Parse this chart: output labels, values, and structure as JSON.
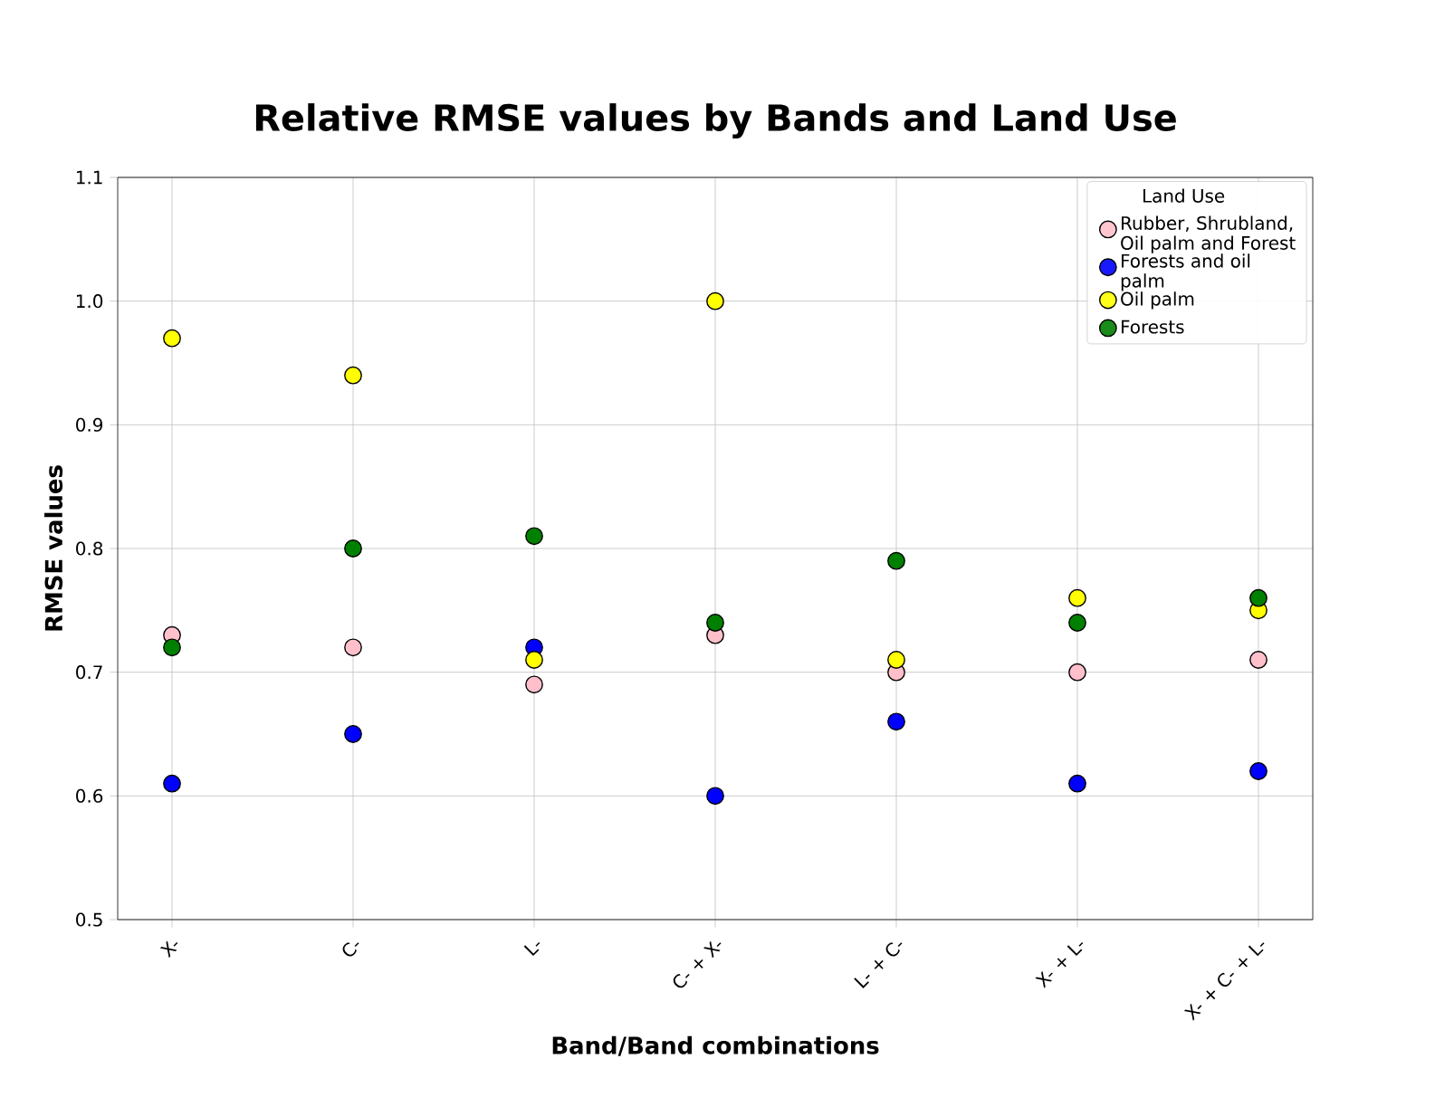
{
  "chart_data": {
    "type": "scatter",
    "title": "Relative RMSE values by Bands and Land Use",
    "xlabel": "Band/Band combinations",
    "ylabel": "RMSE values",
    "legend_title": "Land Use",
    "categories": [
      "X-",
      "C-",
      "L-",
      "C- + X-",
      "L- + C-",
      "X- + L-",
      "X- + C- + L-"
    ],
    "series": [
      {
        "name": "Rubber, Shrubland, Oil palm and Forest",
        "color": "#ffc0cb",
        "values": [
          0.73,
          0.72,
          0.69,
          0.73,
          0.7,
          0.7,
          0.71
        ]
      },
      {
        "name": "Forests and oil palm",
        "color": "#0000ff",
        "values": [
          0.61,
          0.65,
          0.72,
          0.6,
          0.66,
          0.61,
          0.62
        ]
      },
      {
        "name": "Oil palm",
        "color": "#ffff00",
        "values": [
          0.97,
          0.94,
          0.71,
          1.0,
          0.71,
          0.76,
          0.75
        ]
      },
      {
        "name": "Forests",
        "color": "#008000",
        "values": [
          0.72,
          0.8,
          0.81,
          0.74,
          0.79,
          0.74,
          0.76
        ]
      }
    ],
    "ylim": [
      0.5,
      1.1
    ],
    "yticks": [
      0.5,
      0.6,
      0.7,
      0.8,
      0.9,
      {
        "value": 1.0,
        "label": "1.0"
      },
      1.1
    ],
    "grid": true,
    "legend": "top right",
    "marker": "circle"
  }
}
